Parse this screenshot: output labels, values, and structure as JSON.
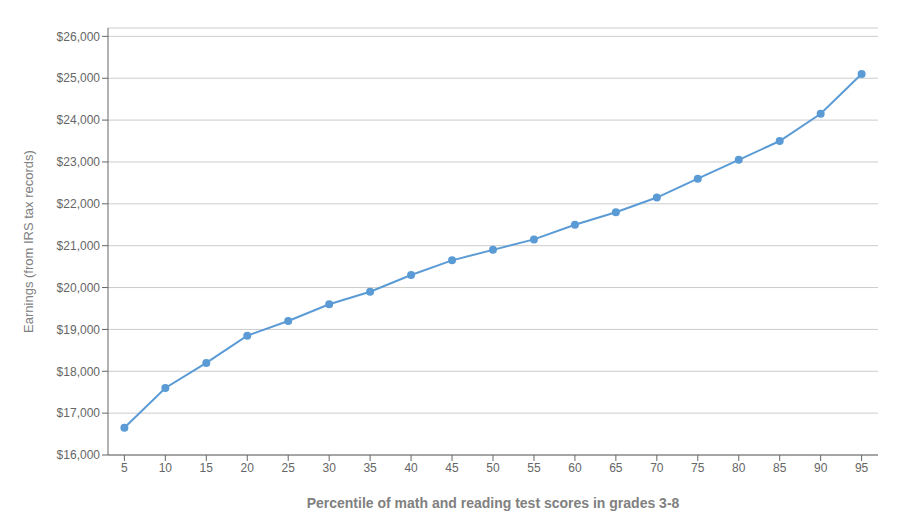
{
  "chart_data": {
    "type": "line",
    "xlabel": "Percentile of math and reading test scores in grades 3-8",
    "ylabel": "Earnings (from IRS tax records)",
    "x": [
      5,
      10,
      15,
      20,
      25,
      30,
      35,
      40,
      45,
      50,
      55,
      60,
      65,
      70,
      75,
      80,
      85,
      90,
      95
    ],
    "values": [
      16650,
      17600,
      18200,
      18850,
      19200,
      19600,
      19900,
      20300,
      20650,
      20900,
      21150,
      21500,
      21800,
      22150,
      22600,
      23050,
      23500,
      24150,
      25100
    ],
    "color": "#5b9bd5",
    "marker": "circle",
    "xlim": [
      3,
      97
    ],
    "ylim": [
      16000,
      26200
    ],
    "xticks": [
      5,
      10,
      15,
      20,
      25,
      30,
      35,
      40,
      45,
      50,
      55,
      60,
      65,
      70,
      75,
      80,
      85,
      90,
      95
    ],
    "yticks": [
      {
        "value": 16000,
        "label": "$16,000"
      },
      {
        "value": 17000,
        "label": "$17,000"
      },
      {
        "value": 18000,
        "label": "$18,000"
      },
      {
        "value": 19000,
        "label": "$19,000"
      },
      {
        "value": 20000,
        "label": "$20,000"
      },
      {
        "value": 21000,
        "label": "$21,000"
      },
      {
        "value": 22000,
        "label": "$22,000"
      },
      {
        "value": 23000,
        "label": "$23,000"
      },
      {
        "value": 24000,
        "label": "$24,000"
      },
      {
        "value": 25000,
        "label": "$25,000"
      },
      {
        "value": 26000,
        "label": "$26,000"
      }
    ],
    "grid": true
  }
}
